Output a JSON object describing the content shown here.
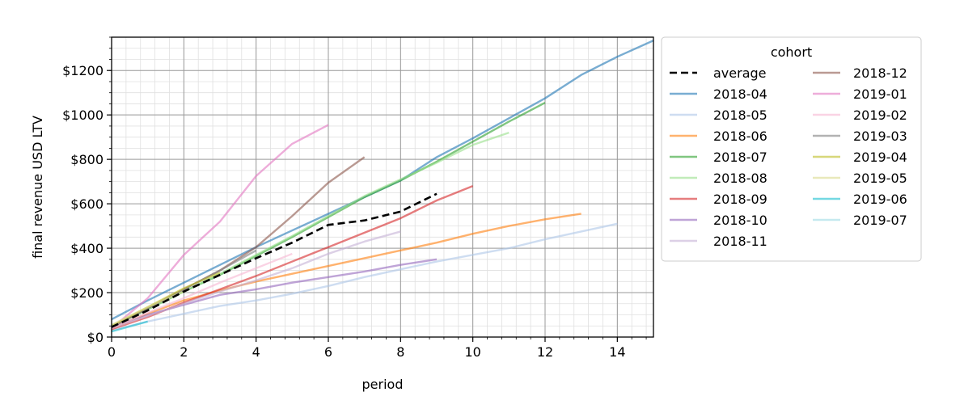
{
  "chart_data": {
    "type": "line",
    "xlabel": "period",
    "ylabel": "final revenue USD LTV",
    "xlim": [
      0,
      15
    ],
    "ylim": [
      0,
      1350
    ],
    "x_ticks": [
      0,
      2,
      4,
      6,
      8,
      10,
      12,
      14
    ],
    "x_tick_labels": [
      "0",
      "2",
      "4",
      "6",
      "8",
      "10",
      "12",
      "14"
    ],
    "y_ticks": [
      0,
      200,
      400,
      600,
      800,
      1000,
      1200
    ],
    "y_tick_labels": [
      "$0",
      "$200",
      "$400",
      "$600",
      "$800",
      "$1000",
      "$1200"
    ],
    "grid": true,
    "minor_grid": true,
    "legend_title": "cohort",
    "legend_position": "outside-right",
    "series": [
      {
        "name": "average",
        "color": "#000000",
        "style": "dashed",
        "alpha": 1.0,
        "x": [
          0,
          1,
          2,
          3,
          4,
          5,
          6,
          7,
          8,
          9
        ],
        "y": [
          45,
          120,
          205,
          280,
          355,
          425,
          505,
          525,
          565,
          645
        ]
      },
      {
        "name": "2018-04",
        "color": "#1f77b4",
        "alpha": 0.6,
        "x": [
          0,
          1,
          2,
          3,
          4,
          5,
          6,
          7,
          8,
          9,
          10,
          11,
          12,
          13,
          14,
          15
        ],
        "y": [
          80,
          165,
          245,
          325,
          405,
          480,
          555,
          630,
          705,
          810,
          895,
          985,
          1075,
          1180,
          1262,
          1335
        ]
      },
      {
        "name": "2018-05",
        "color": "#aec7e8",
        "alpha": 0.6,
        "x": [
          0,
          1,
          2,
          3,
          4,
          5,
          6,
          7,
          8,
          9,
          10,
          11,
          12,
          13,
          14
        ],
        "y": [
          30,
          70,
          105,
          140,
          165,
          195,
          230,
          270,
          305,
          340,
          370,
          400,
          440,
          475,
          510
        ]
      },
      {
        "name": "2018-06",
        "color": "#ff7f0e",
        "alpha": 0.6,
        "x": [
          0,
          1,
          2,
          3,
          4,
          5,
          6,
          7,
          8,
          9,
          10,
          11,
          12,
          13
        ],
        "y": [
          40,
          105,
          165,
          210,
          250,
          285,
          320,
          355,
          390,
          425,
          465,
          500,
          530,
          555
        ]
      },
      {
        "name": "2018-07",
        "color": "#2ca02c",
        "alpha": 0.6,
        "x": [
          0,
          1,
          2,
          3,
          4,
          5,
          6,
          7,
          8,
          9,
          10,
          11,
          12
        ],
        "y": [
          50,
          125,
          205,
          280,
          365,
          450,
          540,
          630,
          705,
          790,
          880,
          970,
          1055
        ]
      },
      {
        "name": "2018-08",
        "color": "#98df8a",
        "alpha": 0.6,
        "x": [
          0,
          1,
          2,
          3,
          4,
          5,
          6,
          7,
          8,
          9,
          10,
          11
        ],
        "y": [
          45,
          125,
          205,
          285,
          370,
          455,
          545,
          635,
          710,
          785,
          865,
          920
        ]
      },
      {
        "name": "2018-09",
        "color": "#d62728",
        "alpha": 0.6,
        "x": [
          0,
          1,
          2,
          3,
          4,
          5,
          6,
          7,
          8,
          9,
          10
        ],
        "y": [
          35,
          90,
          155,
          215,
          275,
          340,
          405,
          470,
          535,
          615,
          680
        ]
      },
      {
        "name": "2018-10",
        "color": "#9467bd",
        "alpha": 0.6,
        "x": [
          0,
          1,
          2,
          3,
          4,
          5,
          6,
          7,
          8,
          9
        ],
        "y": [
          45,
          100,
          145,
          190,
          215,
          245,
          270,
          295,
          325,
          350
        ]
      },
      {
        "name": "2018-11",
        "color": "#c5b0d5",
        "alpha": 0.6,
        "x": [
          0,
          1,
          2,
          3,
          4,
          5,
          6,
          7,
          8
        ],
        "y": [
          40,
          95,
          150,
          205,
          255,
          310,
          375,
          430,
          475
        ]
      },
      {
        "name": "2018-12",
        "color": "#8c564b",
        "alpha": 0.6,
        "x": [
          0,
          1,
          2,
          3,
          4,
          5,
          6,
          7
        ],
        "y": [
          45,
          130,
          215,
          300,
          405,
          545,
          695,
          810
        ]
      },
      {
        "name": "2019-01",
        "color": "#e377c2",
        "alpha": 0.6,
        "x": [
          0,
          1,
          2,
          3,
          4,
          5,
          6
        ],
        "y": [
          40,
          175,
          370,
          520,
          725,
          870,
          955
        ]
      },
      {
        "name": "2019-02",
        "color": "#f7b6d2",
        "alpha": 0.6,
        "x": [
          0,
          1,
          2,
          3,
          4,
          5
        ],
        "y": [
          40,
          110,
          175,
          245,
          310,
          375
        ]
      },
      {
        "name": "2019-03",
        "color": "#7f7f7f",
        "alpha": 0.6,
        "x": [
          0,
          1,
          2,
          3,
          4
        ],
        "y": [
          45,
          130,
          215,
          300,
          390
        ]
      },
      {
        "name": "2019-04",
        "color": "#bcbd22",
        "alpha": 0.6,
        "x": [
          0,
          1,
          2,
          3
        ],
        "y": [
          50,
          135,
          220,
          290
        ]
      },
      {
        "name": "2019-05",
        "color": "#dbdb8d",
        "alpha": 0.6,
        "x": [
          0,
          1,
          2
        ],
        "y": [
          55,
          135,
          205
        ]
      },
      {
        "name": "2019-06",
        "color": "#17becf",
        "alpha": 0.6,
        "x": [
          0,
          1
        ],
        "y": [
          25,
          70
        ]
      },
      {
        "name": "2019-07",
        "color": "#9edae5",
        "alpha": 0.6,
        "x": [
          0
        ],
        "y": [
          30
        ]
      }
    ]
  }
}
